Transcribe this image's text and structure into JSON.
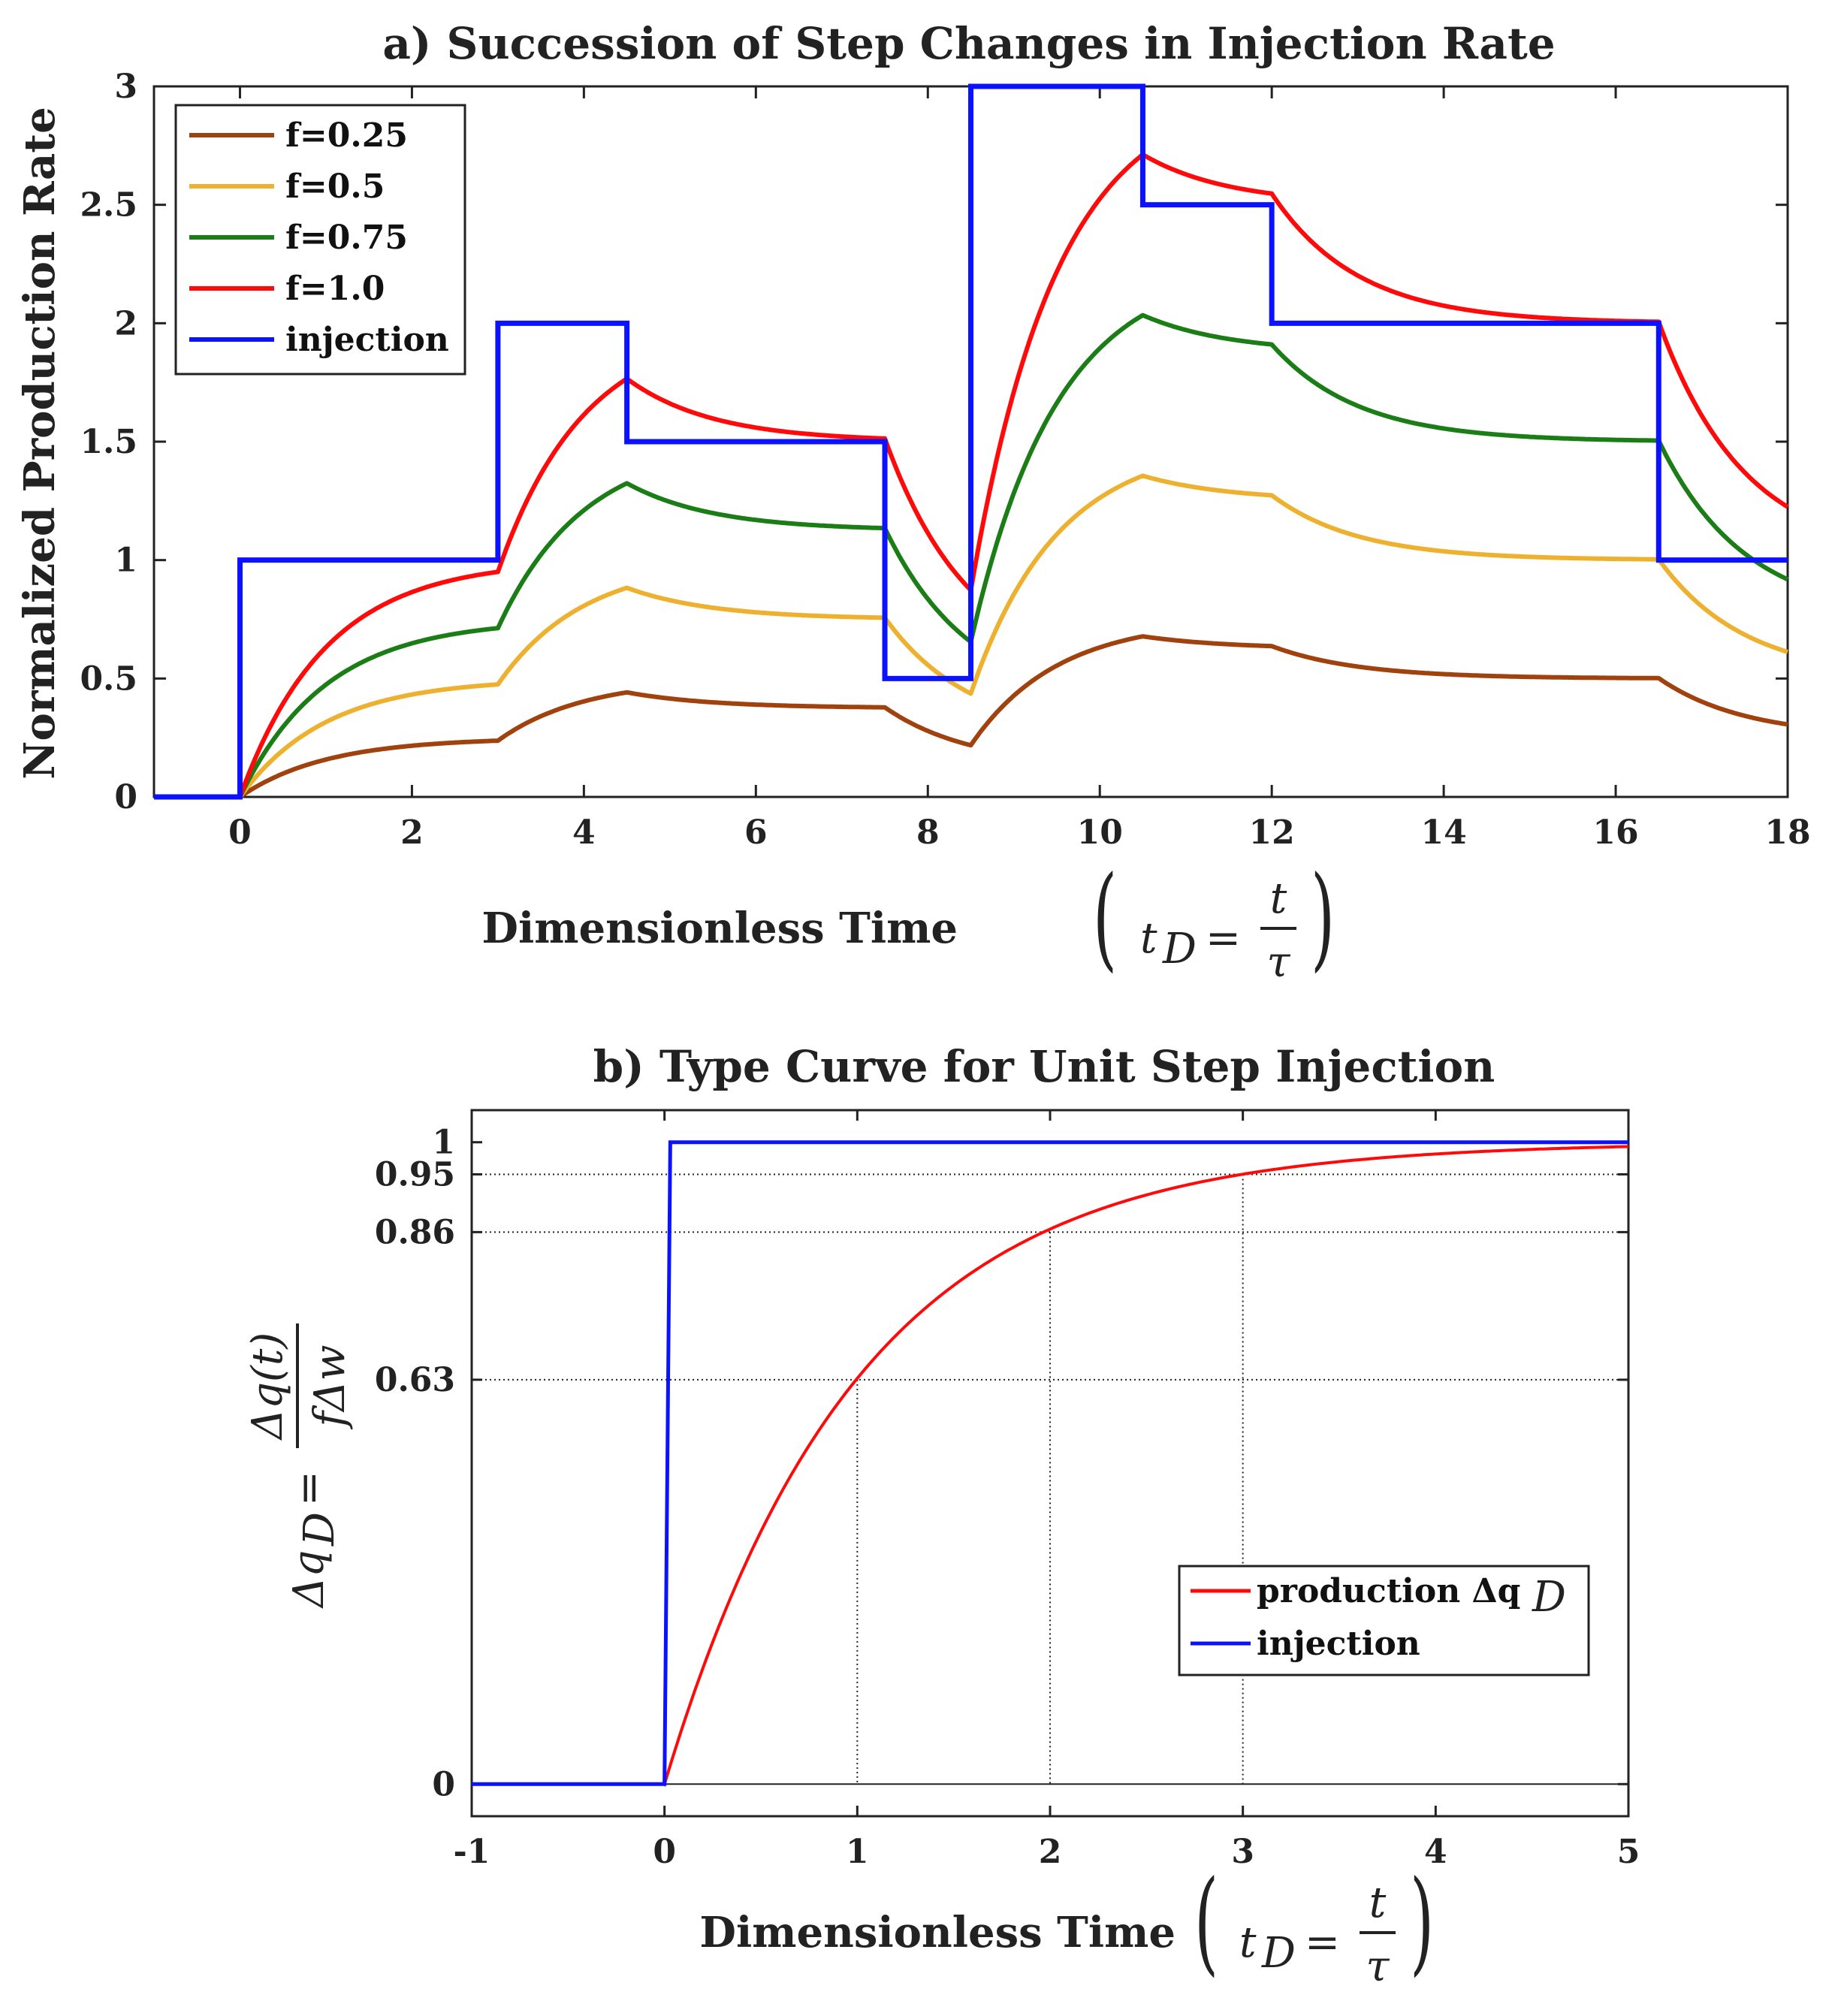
{
  "chart_data": [
    {
      "type": "line",
      "title": "a) Succession of Step Changes in Injection Rate",
      "xlabel": "Dimensionless Time",
      "xlabel_math": {
        "lhs": "t",
        "sub": "D",
        "eq": "=",
        "num": "t",
        "den": "τ"
      },
      "ylabel": "Normalized Production Rate",
      "xlim": [
        -1,
        18
      ],
      "ylim": [
        0,
        3
      ],
      "xticks": [
        "0",
        "2",
        "4",
        "6",
        "8",
        "10",
        "12",
        "14",
        "16",
        "18"
      ],
      "yticks": [
        "0",
        "0.5",
        "1",
        "1.5",
        "2",
        "2.5",
        "3"
      ],
      "legend_position": "top-left",
      "injection_steps": [
        {
          "t": 0,
          "rate": 1
        },
        {
          "t": 3,
          "rate": 2
        },
        {
          "t": 4.5,
          "rate": 1.5
        },
        {
          "t": 7.5,
          "rate": 0.5
        },
        {
          "t": 8.5,
          "rate": 3
        },
        {
          "t": 10.5,
          "rate": 2.5
        },
        {
          "t": 12,
          "rate": 2
        },
        {
          "t": 16.5,
          "rate": 1
        }
      ],
      "series": [
        {
          "name": "f=0.25",
          "f": 0.25,
          "color": "#A0410E"
        },
        {
          "name": "f=0.5",
          "f": 0.5,
          "color": "#EDB12F"
        },
        {
          "name": "f=0.75",
          "f": 0.75,
          "color": "#1B7D16"
        },
        {
          "name": "f=1.0",
          "f": 1.0,
          "color": "#FF0A0A"
        },
        {
          "name": "injection",
          "f": null,
          "color": "#0A12FF"
        }
      ]
    },
    {
      "type": "line",
      "title": "b) Type Curve for Unit Step Injection",
      "xlabel": "Dimensionless Time",
      "xlabel_math": {
        "lhs": "t",
        "sub": "D",
        "eq": "=",
        "num": "t",
        "den": "τ"
      },
      "ylabel_math": {
        "lhs": "Δq",
        "sub": "D",
        "eq": "=",
        "num": "Δq(t)",
        "den": "fΔw"
      },
      "xlim": [
        -1,
        5
      ],
      "ylim": [
        -0.05,
        1.05
      ],
      "xticks": [
        "-1",
        "0",
        "1",
        "2",
        "3",
        "4",
        "5"
      ],
      "yticks": [
        {
          "value": 0,
          "label": "0"
        },
        {
          "value": 0.63,
          "label": "0.63"
        },
        {
          "value": 0.86,
          "label": "0.86"
        },
        {
          "value": 0.95,
          "label": "0.95"
        },
        {
          "value": 1,
          "label": "1"
        }
      ],
      "reference_points": [
        {
          "x": 1,
          "y": 0.63
        },
        {
          "x": 2,
          "y": 0.86
        },
        {
          "x": 3,
          "y": 0.95
        }
      ],
      "legend_position": "bottom-right",
      "series": [
        {
          "name": "production Δq",
          "sub": "D",
          "color": "#FF0A0A"
        },
        {
          "name": "injection",
          "color": "#0A12FF"
        }
      ]
    }
  ]
}
